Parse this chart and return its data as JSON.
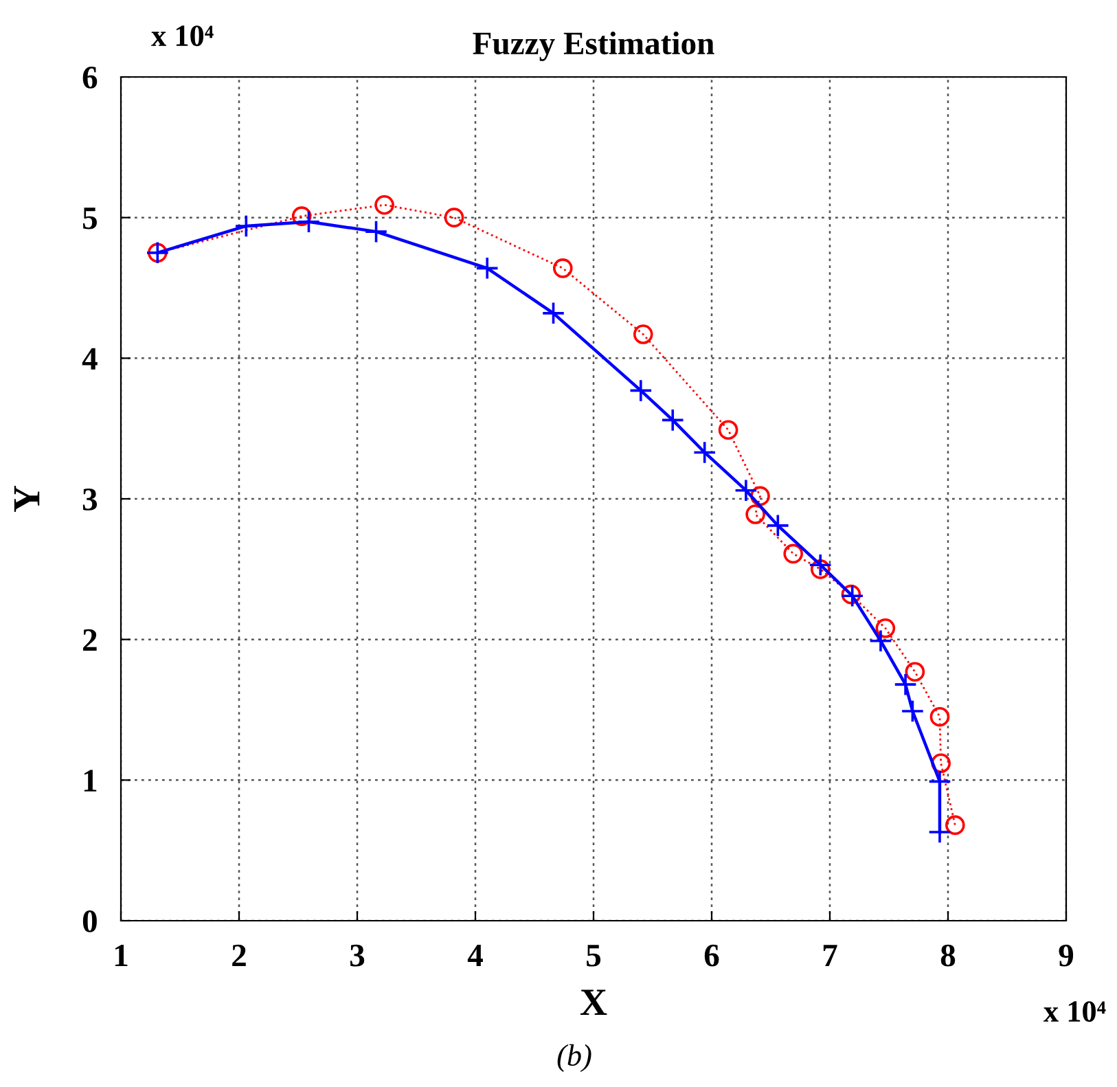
{
  "chart_data": {
    "type": "line",
    "title": "Fuzzy Estimation",
    "xlabel": "X",
    "ylabel": "Y",
    "annotations": [
      "x 10⁴",
      "x 10⁴",
      "(b)"
    ],
    "xlim": [
      1,
      9
    ],
    "xticks": [
      1,
      2,
      3,
      4,
      5,
      6,
      7,
      8,
      9
    ],
    "ylim": [
      0,
      6
    ],
    "yticks": [
      0,
      1,
      2,
      3,
      4,
      5,
      6
    ],
    "grid": true,
    "legend": false,
    "series": [
      {
        "color": "#ff0000",
        "marker": "circle",
        "line_style": "dotted",
        "x": [
          1.31,
          2.53,
          3.23,
          3.82,
          4.74,
          5.42,
          6.14,
          6.41,
          6.37,
          6.69,
          6.92,
          7.18,
          7.47,
          7.72,
          7.93,
          7.94,
          8.06
        ],
        "values": [
          4.75,
          5.01,
          5.09,
          5.0,
          4.64,
          4.17,
          3.49,
          3.02,
          2.89,
          2.61,
          2.5,
          2.32,
          2.08,
          1.77,
          1.45,
          1.12,
          0.68
        ]
      },
      {
        "color": "#0000ff",
        "marker": "cross",
        "line_style": "solid",
        "x": [
          1.31,
          2.06,
          2.59,
          3.16,
          4.1,
          4.66,
          5.4,
          5.67,
          5.94,
          6.29,
          6.56,
          6.92,
          7.19,
          7.43,
          7.64,
          7.7,
          7.93,
          7.93
        ],
        "values": [
          4.75,
          4.94,
          4.97,
          4.9,
          4.64,
          4.32,
          3.77,
          3.56,
          3.33,
          3.06,
          2.81,
          2.53,
          2.31,
          1.99,
          1.68,
          1.49,
          0.99,
          0.63
        ]
      }
    ]
  }
}
